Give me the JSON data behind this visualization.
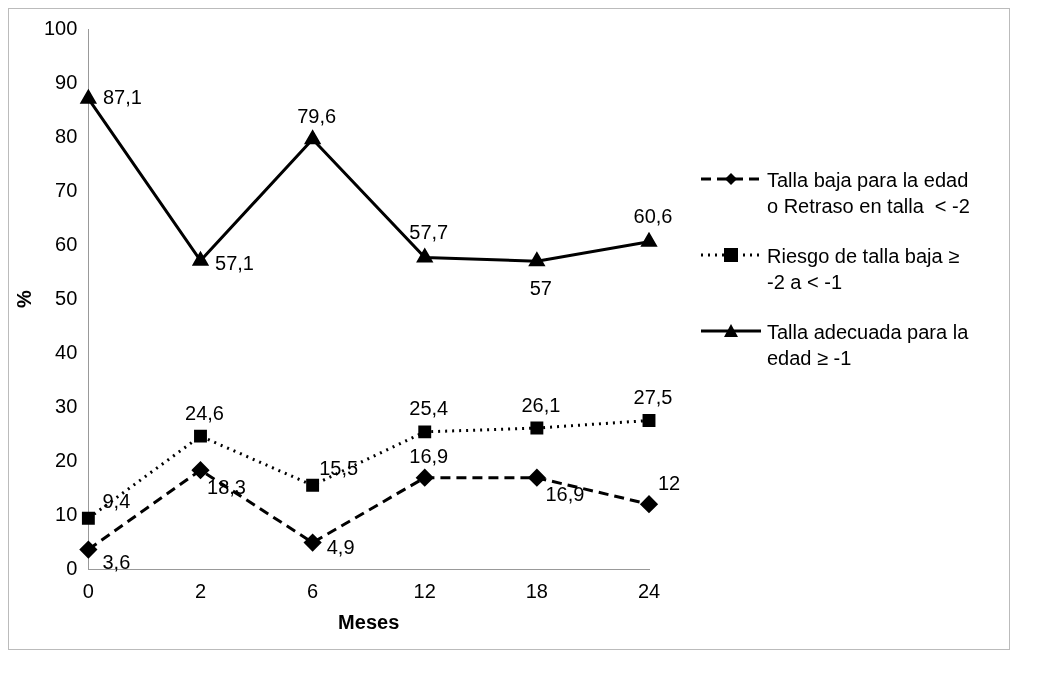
{
  "chart_data": {
    "type": "line",
    "xlabel": "Meses",
    "ylabel": "%",
    "categories": [
      "0",
      "2",
      "6",
      "12",
      "18",
      "24"
    ],
    "series": [
      {
        "name": "Talla baja para la edad o Retraso en talla  < -2",
        "color": "#000000",
        "marker": "diamond",
        "line_style": "dashed",
        "values": [
          3.6,
          18.3,
          4.9,
          16.9,
          16.9,
          12
        ],
        "value_labels": [
          "3,6",
          "18,3",
          "4,9",
          "16,9",
          "16,9",
          "12"
        ]
      },
      {
        "name": "Riesgo de talla baja ≥ -2 a < -1",
        "color": "#000000",
        "marker": "square",
        "line_style": "dotted",
        "values": [
          9.4,
          24.6,
          15.5,
          25.4,
          26.1,
          27.5
        ],
        "value_labels": [
          "9,4",
          "24,6",
          "15,5",
          "25,4",
          "26,1",
          "27,5"
        ]
      },
      {
        "name": "Talla adecuada para la edad ≥ -1",
        "color": "#000000",
        "marker": "triangle",
        "line_style": "solid",
        "values": [
          87.1,
          57.1,
          79.6,
          57.7,
          57,
          60.6
        ],
        "value_labels": [
          "87,1",
          "57,1",
          "79,6",
          "57,7",
          "57",
          "60,6"
        ]
      }
    ],
    "ylim": [
      0,
      100
    ],
    "yticks": [
      0,
      10,
      20,
      30,
      40,
      50,
      60,
      70,
      80,
      90,
      100
    ],
    "grid": false,
    "legend": "right"
  }
}
